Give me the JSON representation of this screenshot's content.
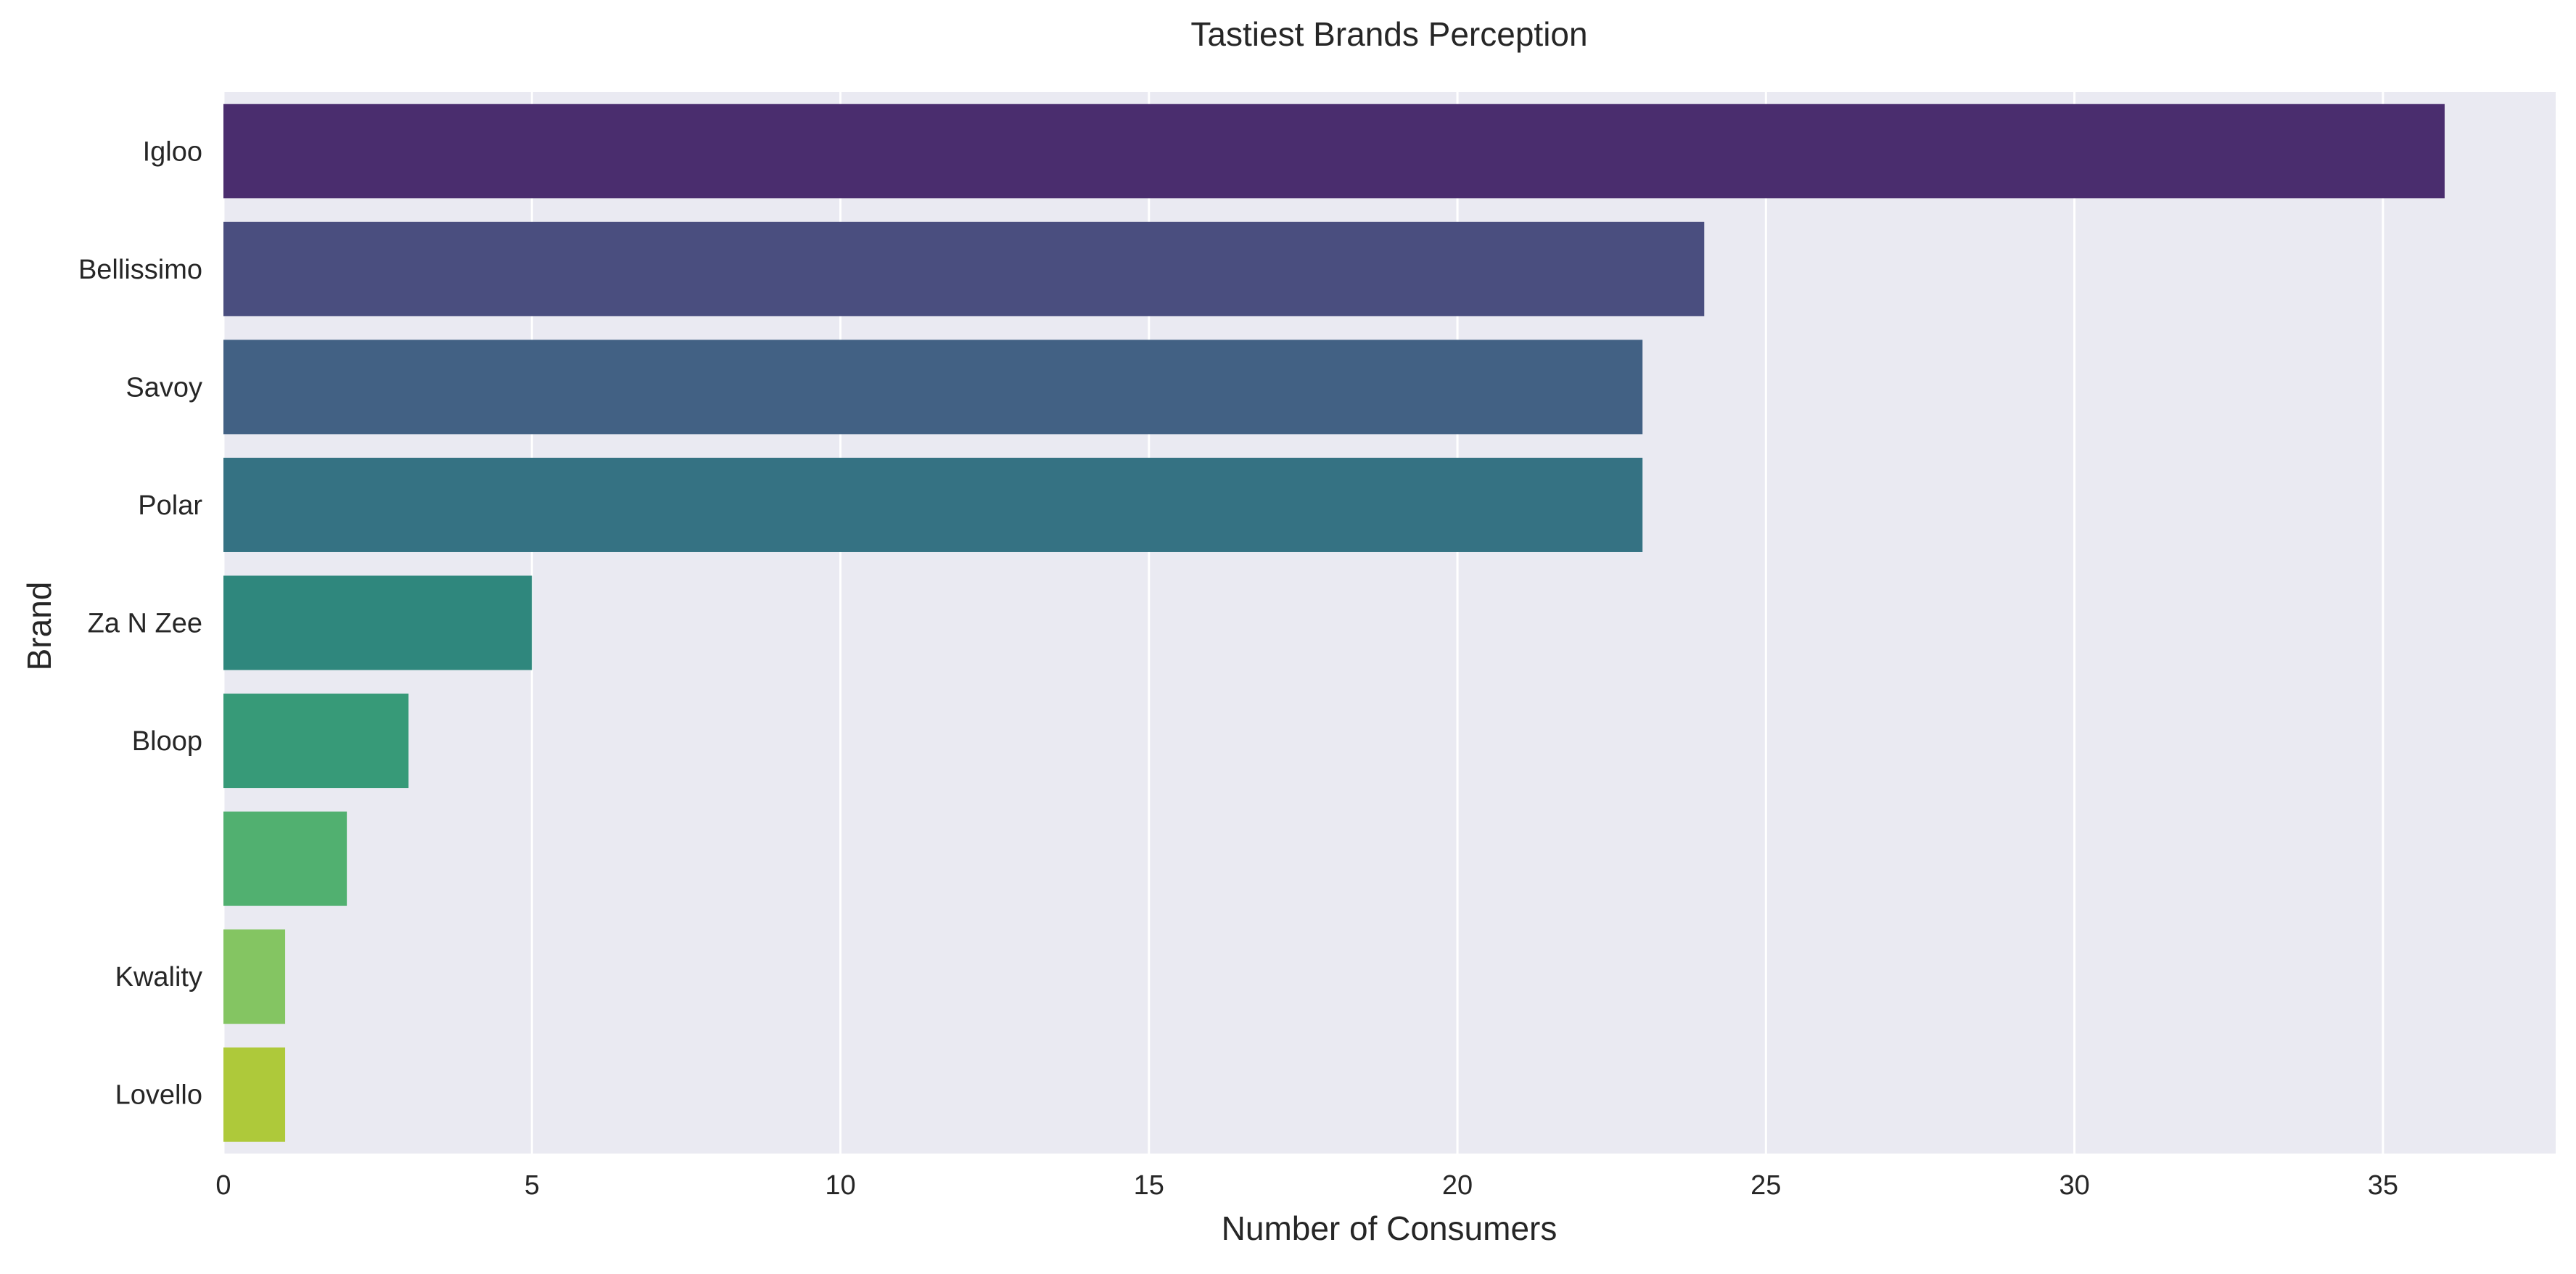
{
  "chart_data": {
    "type": "bar",
    "orientation": "horizontal",
    "title": "Tastiest Brands Perception",
    "xlabel": "Number of Consumers",
    "ylabel": "Brand",
    "categories": [
      "Igloo",
      "Bellissimo",
      "Savoy",
      "Polar",
      "Za N Zee",
      "Bloop",
      "",
      "Kwality",
      "Lovello"
    ],
    "values": [
      36,
      24,
      23,
      23,
      5,
      3,
      2,
      1,
      1
    ],
    "xlim": [
      0,
      37.8
    ],
    "xticks": [
      0,
      5,
      10,
      15,
      20,
      25,
      30,
      35
    ],
    "grid": true,
    "legend": "none",
    "colors": [
      "#4a2d6e",
      "#4a4e7f",
      "#426184",
      "#357283",
      "#2f877d",
      "#379a78",
      "#51b070",
      "#84c562",
      "#aec93a"
    ],
    "plot_background": "#eaeaf2",
    "grid_color": "#ffffff"
  }
}
